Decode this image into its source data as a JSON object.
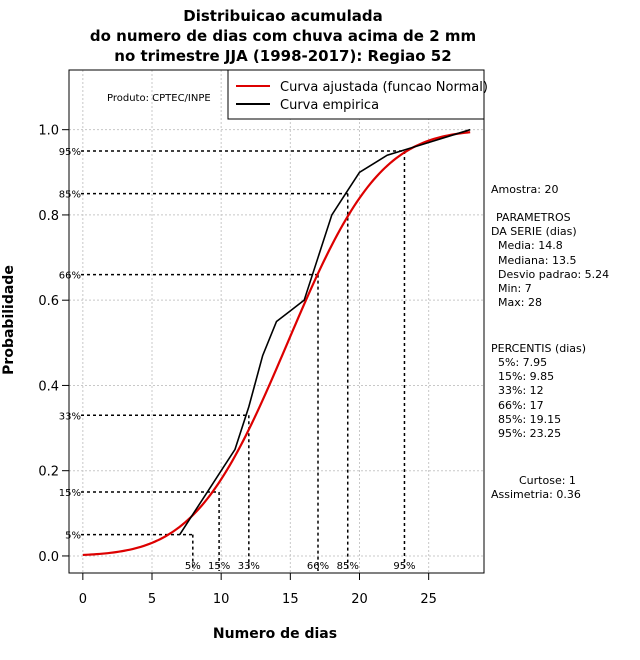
{
  "chart_data": {
    "type": "line",
    "title": [
      "Distribuicao acumulada",
      "do numero de dias com chuva acima de 2 mm",
      "no trimestre JJA (1998-2017): Regiao 52"
    ],
    "xlabel": "Numero de dias",
    "ylabel": "Probabilidade",
    "xlim": [
      -1,
      29
    ],
    "ylim": [
      -0.04,
      1.14
    ],
    "x_ticks": [
      0,
      5,
      10,
      15,
      20,
      25
    ],
    "y_ticks": [
      0.0,
      0.2,
      0.4,
      0.6,
      0.8,
      1.0
    ],
    "x_tick_labels": [
      "0",
      "5",
      "10",
      "15",
      "20",
      "25"
    ],
    "y_tick_labels": [
      "0.0",
      "0.2",
      "0.4",
      "0.6",
      "0.8",
      "1.0"
    ],
    "grid": true,
    "credit": "Produto: CPTEC/INPE",
    "legend": {
      "position": "top-right",
      "entries": [
        "Curva ajustada (funcao Normal)",
        "Curva empirica"
      ]
    },
    "series": [
      {
        "name": "Curva ajustada (funcao Normal)",
        "color": "#dd0000",
        "distribution": "normal",
        "mean": 14.8,
        "sd": 5.24,
        "x_range": [
          0,
          28
        ]
      },
      {
        "name": "Curva empirica",
        "color": "#000000",
        "x": [
          7,
          8,
          9,
          10,
          11,
          12,
          13,
          14,
          15,
          16,
          17,
          18,
          19,
          20,
          21,
          22,
          23,
          24,
          25,
          26,
          27,
          28
        ],
        "y": [
          0.05,
          0.1,
          0.15,
          0.2,
          0.25,
          0.35,
          0.47,
          0.55,
          0.575,
          0.6,
          0.7,
          0.8,
          0.85,
          0.9,
          0.92,
          0.94,
          0.95,
          0.96,
          0.97,
          0.98,
          0.99,
          1.0
        ]
      }
    ],
    "percentiles": [
      {
        "label": "5%",
        "prob": 0.05,
        "value": 7.95
      },
      {
        "label": "15%",
        "prob": 0.15,
        "value": 9.85
      },
      {
        "label": "33%",
        "prob": 0.33,
        "value": 12
      },
      {
        "label": "66%",
        "prob": 0.66,
        "value": 17
      },
      {
        "label": "85%",
        "prob": 0.85,
        "value": 19.15
      },
      {
        "label": "95%",
        "prob": 0.95,
        "value": 23.25
      }
    ],
    "side_panel": [
      "Amostra: 20",
      "PARAMETROS",
      "DA SERIE (dias)",
      "Media: 14.8",
      "Mediana: 13.5",
      "Desvio padrao: 5.24",
      "Min: 7",
      "Max: 28",
      "PERCENTIS (dias)",
      "5%: 7.95",
      "15%: 9.85",
      "33%: 12",
      "66%: 17",
      "85%: 19.15",
      "95%: 23.25",
      "Curtose: 1",
      "Assimetria: 0.36"
    ]
  }
}
